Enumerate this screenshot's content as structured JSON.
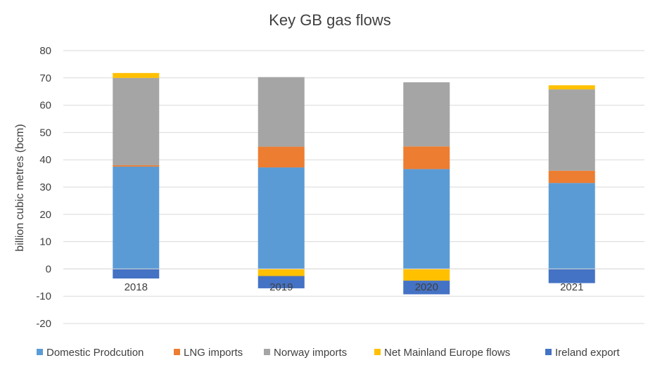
{
  "chart_data": {
    "type": "bar",
    "stacked": true,
    "title": "Key GB gas flows",
    "xlabel": "",
    "ylabel": "billion cubic metres (bcm)",
    "ylim": [
      -20,
      80
    ],
    "yticks": [
      -20,
      -10,
      0,
      10,
      20,
      30,
      40,
      50,
      60,
      70,
      80
    ],
    "grid": true,
    "legend_position": "bottom",
    "categories": [
      "2018",
      "2019",
      "2020",
      "2021"
    ],
    "series": [
      {
        "name": "Domestic Prodcution",
        "color": "#5b9bd5",
        "values": [
          37.5,
          37.2,
          36.6,
          31.5
        ]
      },
      {
        "name": "LNG imports",
        "color": "#ed7d31",
        "values": [
          0.5,
          7.6,
          8.3,
          4.5
        ]
      },
      {
        "name": "Norway imports",
        "color": "#a5a5a5",
        "values": [
          32.0,
          25.5,
          23.5,
          29.8
        ]
      },
      {
        "name": "Net Mainland Europe flows",
        "color": "#ffc000",
        "values": [
          1.8,
          -2.6,
          -4.3,
          1.5
        ]
      },
      {
        "name": "Ireland export",
        "color": "#4472c4",
        "values": [
          -3.5,
          -4.5,
          -5.0,
          -5.2
        ]
      }
    ]
  }
}
